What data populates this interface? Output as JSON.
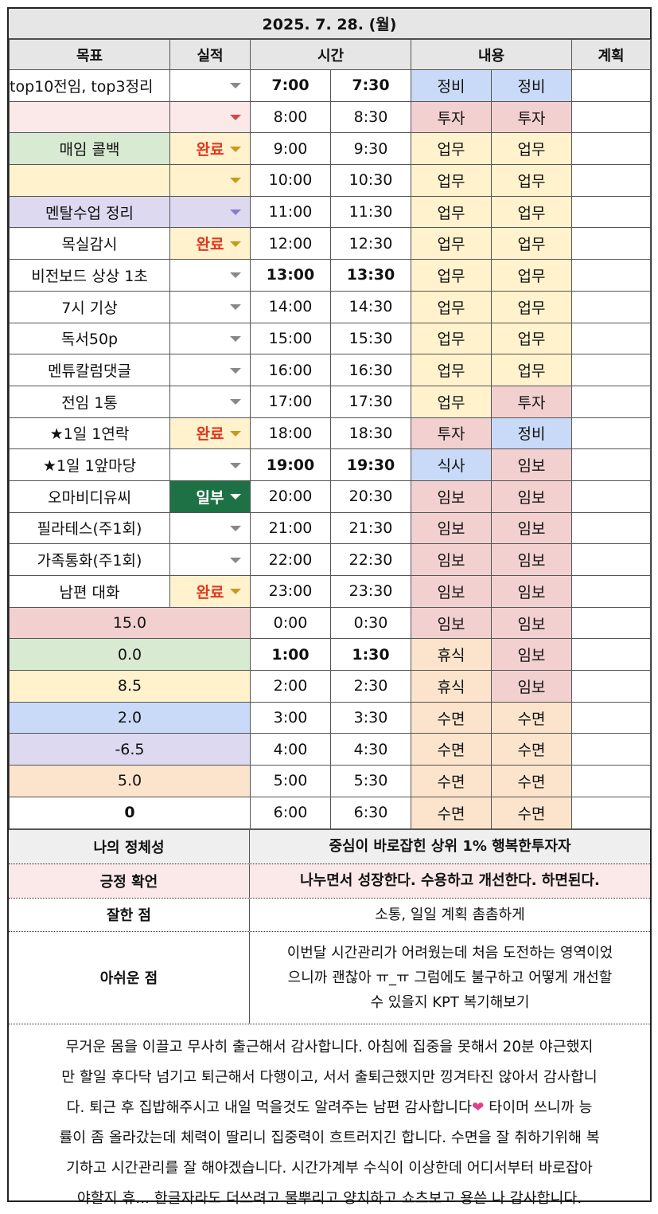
{
  "date": "2025. 7. 28. (월)",
  "headers": {
    "goal": "목표",
    "result": "실적",
    "time": "시간",
    "content": "내용",
    "plan": "계획"
  },
  "rows": [
    {
      "goal": "top10전임, top3정리",
      "goal_color": "#ffffff",
      "result": "",
      "result_color": "#ffffff",
      "arrow": "gray",
      "t1": "7:00",
      "t2": "7:30",
      "bold": true,
      "c1": "정비",
      "c1_color": "#c9daf8",
      "c2": "정비",
      "c2_color": "#c9daf8"
    },
    {
      "goal": "",
      "goal_color": "#fbe8e8",
      "result": "",
      "result_color": "#fbe8e8",
      "arrow": "red",
      "t1": "8:00",
      "t2": "8:30",
      "bold": false,
      "c1": "투자",
      "c1_color": "#f3d0d0",
      "c2": "투자",
      "c2_color": "#f3d0d0"
    },
    {
      "goal": "매임 콜백",
      "goal_color": "#d9ead3",
      "result": "완료",
      "result_color": "#fff2cc",
      "arrow": "gold",
      "t1": "9:00",
      "t2": "9:30",
      "bold": false,
      "c1": "업무",
      "c1_color": "#fff2cc",
      "c2": "업무",
      "c2_color": "#fff2cc"
    },
    {
      "goal": "",
      "goal_color": "#fff2cc",
      "result": "",
      "result_color": "#fff2cc",
      "arrow": "gold",
      "t1": "10:00",
      "t2": "10:30",
      "bold": false,
      "c1": "업무",
      "c1_color": "#fff2cc",
      "c2": "업무",
      "c2_color": "#fff2cc"
    },
    {
      "goal": "멘탈수업 정리",
      "goal_color": "#dcd9f0",
      "result": "",
      "result_color": "#dcd9f0",
      "arrow": "purple",
      "t1": "11:00",
      "t2": "11:30",
      "bold": false,
      "c1": "업무",
      "c1_color": "#fff2cc",
      "c2": "업무",
      "c2_color": "#fff2cc"
    },
    {
      "goal": "목실감시",
      "goal_color": "#ffffff",
      "result": "완료",
      "result_color": "#fff2cc",
      "arrow": "gold",
      "t1": "12:00",
      "t2": "12:30",
      "bold": false,
      "c1": "업무",
      "c1_color": "#fff2cc",
      "c2": "업무",
      "c2_color": "#fff2cc"
    },
    {
      "goal": "비전보드 상상 1초",
      "goal_color": "#ffffff",
      "result": "",
      "result_color": "#ffffff",
      "arrow": "gray",
      "t1": "13:00",
      "t2": "13:30",
      "bold": true,
      "c1": "업무",
      "c1_color": "#fff2cc",
      "c2": "업무",
      "c2_color": "#fff2cc"
    },
    {
      "goal": "7시 기상",
      "goal_color": "#ffffff",
      "result": "",
      "result_color": "#ffffff",
      "arrow": "gray",
      "t1": "14:00",
      "t2": "14:30",
      "bold": false,
      "c1": "업무",
      "c1_color": "#fff2cc",
      "c2": "업무",
      "c2_color": "#fff2cc"
    },
    {
      "goal": "독서50p",
      "goal_color": "#ffffff",
      "result": "",
      "result_color": "#ffffff",
      "arrow": "gray",
      "t1": "15:00",
      "t2": "15:30",
      "bold": false,
      "c1": "업무",
      "c1_color": "#fff2cc",
      "c2": "업무",
      "c2_color": "#fff2cc"
    },
    {
      "goal": "멘튜칼럼댓글",
      "goal_color": "#ffffff",
      "result": "",
      "result_color": "#ffffff",
      "arrow": "gray",
      "t1": "16:00",
      "t2": "16:30",
      "bold": false,
      "c1": "업무",
      "c1_color": "#fff2cc",
      "c2": "업무",
      "c2_color": "#fff2cc"
    },
    {
      "goal": "전임 1통",
      "goal_color": "#ffffff",
      "result": "",
      "result_color": "#ffffff",
      "arrow": "gray",
      "t1": "17:00",
      "t2": "17:30",
      "bold": false,
      "c1": "업무",
      "c1_color": "#fff2cc",
      "c2": "투자",
      "c2_color": "#f3d0d0"
    },
    {
      "goal": "★1일 1연락",
      "goal_color": "#ffffff",
      "result": "완료",
      "result_color": "#fff2cc",
      "arrow": "gold",
      "t1": "18:00",
      "t2": "18:30",
      "bold": false,
      "c1": "투자",
      "c1_color": "#f3d0d0",
      "c2": "정비",
      "c2_color": "#c9daf8"
    },
    {
      "goal": "★1일 1앞마당",
      "goal_color": "#ffffff",
      "result": "",
      "result_color": "#ffffff",
      "arrow": "gray",
      "t1": "19:00",
      "t2": "19:30",
      "bold": true,
      "c1": "식사",
      "c1_color": "#c9daf8",
      "c2": "임보",
      "c2_color": "#f3d0d0"
    },
    {
      "goal": "오마비디유씨",
      "goal_color": "#ffffff",
      "result": "일부",
      "result_color": "#1e7145",
      "arrow": "white",
      "t1": "20:00",
      "t2": "20:30",
      "bold": false,
      "c1": "임보",
      "c1_color": "#f3d0d0",
      "c2": "임보",
      "c2_color": "#f3d0d0"
    },
    {
      "goal": "필라테스(주1회)",
      "goal_color": "#ffffff",
      "result": "",
      "result_color": "#ffffff",
      "arrow": "gray",
      "t1": "21:00",
      "t2": "21:30",
      "bold": false,
      "c1": "임보",
      "c1_color": "#f3d0d0",
      "c2": "임보",
      "c2_color": "#f3d0d0"
    },
    {
      "goal": "가족통화(주1회)",
      "goal_color": "#ffffff",
      "result": "",
      "result_color": "#ffffff",
      "arrow": "gray",
      "t1": "22:00",
      "t2": "22:30",
      "bold": false,
      "c1": "임보",
      "c1_color": "#f3d0d0",
      "c2": "임보",
      "c2_color": "#f3d0d0"
    },
    {
      "goal": "남편 대화",
      "goal_color": "#ffffff",
      "result": "완료",
      "result_color": "#fff2cc",
      "arrow": "gold",
      "t1": "23:00",
      "t2": "23:30",
      "bold": false,
      "c1": "임보",
      "c1_color": "#f3d0d0",
      "c2": "임보",
      "c2_color": "#f3d0d0"
    },
    {
      "summary": "15.0",
      "summary_color": "#f3d0d0",
      "t1": "0:00",
      "t2": "0:30",
      "bold": false,
      "c1": "임보",
      "c1_color": "#f3d0d0",
      "c2": "임보",
      "c2_color": "#f3d0d0"
    },
    {
      "summary": "0.0",
      "summary_color": "#d9ead3",
      "t1": "1:00",
      "t2": "1:30",
      "bold": true,
      "c1": "휴식",
      "c1_color": "#fce4cc",
      "c2": "임보",
      "c2_color": "#f3d0d0"
    },
    {
      "summary": "8.5",
      "summary_color": "#fff2cc",
      "t1": "2:00",
      "t2": "2:30",
      "bold": false,
      "c1": "휴식",
      "c1_color": "#fce4cc",
      "c2": "임보",
      "c2_color": "#f3d0d0"
    },
    {
      "summary": "2.0",
      "summary_color": "#c9daf8",
      "t1": "3:00",
      "t2": "3:30",
      "bold": false,
      "c1": "수면",
      "c1_color": "#fce4cc",
      "c2": "수면",
      "c2_color": "#fce4cc"
    },
    {
      "summary": "-6.5",
      "summary_color": "#dcd9f0",
      "t1": "4:00",
      "t2": "4:30",
      "bold": false,
      "c1": "수면",
      "c1_color": "#fce4cc",
      "c2": "수면",
      "c2_color": "#fce4cc"
    },
    {
      "summary": "5.0",
      "summary_color": "#fce4cc",
      "t1": "5:00",
      "t2": "5:30",
      "bold": false,
      "c1": "수면",
      "c1_color": "#fce4cc",
      "c2": "수면",
      "c2_color": "#fce4cc"
    },
    {
      "summary": "0",
      "summary_color": "#ffffff",
      "summary_bold": true,
      "t1": "6:00",
      "t2": "6:30",
      "bold": false,
      "c1": "수면",
      "c1_color": "#fce4cc",
      "c2": "수면",
      "c2_color": "#fce4cc"
    }
  ],
  "identity": {
    "label": "나의 정체성",
    "value": "중심이 바로잡힌 상위 1% 행복한투자자"
  },
  "affirmation": {
    "label": "긍정 확언",
    "value": "나누면서 성장한다. 수용하고 개선한다. 하면된다."
  },
  "good": {
    "label": "잘한 점",
    "value": "소통, 일일 계획 촘촘하게"
  },
  "regret": {
    "label": "아쉬운 점",
    "lines": [
      "이번달 시간관리가 어려웠는데 처음 도전하는 영역이었",
      "으니까 괜찮아 ㅠ_ㅠ 그럼에도 불구하고 어떻게 개선할",
      "수 있을지 KPT 복기해보기"
    ]
  },
  "diary": {
    "lines": [
      "무거운 몸을 이끌고 무사히 출근해서 감사합니다. 아침에 집중을 못해서 20분 야근했지",
      "만 할일 후다닥 넘기고 퇴근해서 다행이고, 서서 출퇴근했지만 낑겨타진 않아서 감사합니",
      "다. 퇴근 후 집밥해주시고 내일 먹을것도 알려주는 남편 감사합니다",
      "률이 좀 올라갔는데 체력이 딸리니 집중력이 흐트러지긴 합니다. 수면을 잘 취하기위해 복",
      "기하고 시간관리를 잘 해야겠습니다. 시간가계부 수식이 이상한데 어디서부터 바로잡아",
      "야할지 휴... 한글자라도 더쓰려고 물뿌리고 양치하고 쇼츠보고 용쓴 나 감사합니다."
    ],
    "line3_tail": " 타이머 쓰니까 능",
    "heart_icon": "two-hearts-icon"
  },
  "colors": {
    "done_text": "#e0361f",
    "partial_bg": "#1e7145"
  }
}
